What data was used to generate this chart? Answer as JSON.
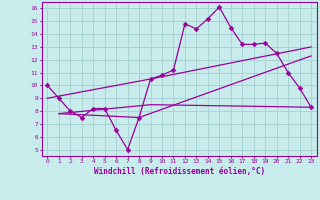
{
  "xlabel": "Windchill (Refroidissement éolien,°C)",
  "background_color": "#c8ecec",
  "grid_color": "#aad4d4",
  "line_color": "#990099",
  "xlim_min": -0.5,
  "xlim_max": 23.5,
  "ylim_min": 4.5,
  "ylim_max": 16.5,
  "xticks": [
    0,
    1,
    2,
    3,
    4,
    5,
    6,
    7,
    8,
    9,
    10,
    11,
    12,
    13,
    14,
    15,
    16,
    17,
    18,
    19,
    20,
    21,
    22,
    23
  ],
  "yticks": [
    5,
    6,
    7,
    8,
    9,
    10,
    11,
    12,
    13,
    14,
    15,
    16
  ],
  "series1_x": [
    0,
    1,
    2,
    3,
    4,
    5,
    6,
    7,
    8,
    9,
    10,
    11,
    12,
    13,
    14,
    15,
    16,
    17,
    18,
    19,
    20,
    21,
    22,
    23
  ],
  "series1_y": [
    10,
    9,
    8,
    7.5,
    8.2,
    8.2,
    6.5,
    5,
    7.5,
    10.5,
    10.8,
    11.2,
    14.8,
    14.4,
    15.2,
    16.1,
    14.5,
    13.2,
    13.2,
    13.3,
    12.5,
    11.0,
    9.8,
    8.3
  ],
  "series2_x": [
    0,
    9,
    23
  ],
  "series2_y": [
    9.0,
    10.5,
    13.0
  ],
  "series3_x": [
    1,
    9,
    23
  ],
  "series3_y": [
    7.8,
    8.5,
    8.3
  ],
  "series4_x": [
    1,
    8,
    23
  ],
  "series4_y": [
    7.8,
    7.5,
    12.3
  ]
}
